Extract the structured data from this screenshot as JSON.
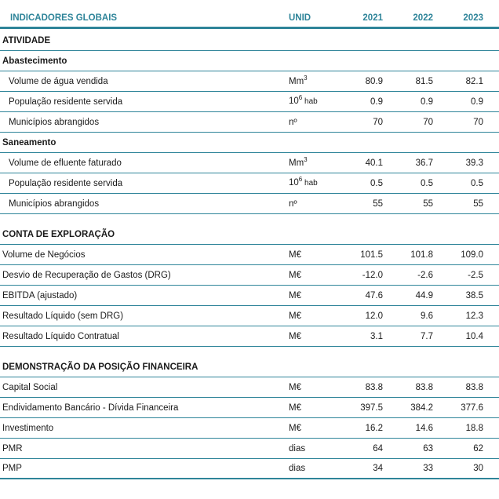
{
  "accent_color": "#2E8499",
  "table": {
    "header": {
      "title": "INDICADORES GLOBAIS",
      "unit_label": "UNID",
      "years": [
        "2021",
        "2022",
        "2023"
      ]
    },
    "sections": [
      {
        "id": "atividade",
        "title": "ATIVIDADE",
        "gap_before": false,
        "rows": [
          {
            "kind": "sub",
            "label": "Abastecimento"
          },
          {
            "kind": "data",
            "indent": true,
            "label": "Volume de água vendida",
            "unit": {
              "b": "Mm",
              "s": "3",
              "a": ""
            },
            "values": [
              "80.9",
              "81.5",
              "82.1"
            ]
          },
          {
            "kind": "data",
            "indent": true,
            "label": "População residente servida",
            "unit": {
              "b": "10",
              "s": "6",
              "a": " hab"
            },
            "values": [
              "0.9",
              "0.9",
              "0.9"
            ]
          },
          {
            "kind": "data",
            "indent": true,
            "label": "Municípios abrangidos",
            "unit": {
              "b": "nº",
              "s": "",
              "a": ""
            },
            "values": [
              "70",
              "70",
              "70"
            ]
          },
          {
            "kind": "sub",
            "label": "Saneamento"
          },
          {
            "kind": "data",
            "indent": true,
            "label": "Volume de efluente faturado",
            "unit": {
              "b": "Mm",
              "s": "3",
              "a": ""
            },
            "values": [
              "40.1",
              "36.7",
              "39.3"
            ]
          },
          {
            "kind": "data",
            "indent": true,
            "label": "População residente servida",
            "unit": {
              "b": "10",
              "s": "6",
              "a": " hab"
            },
            "values": [
              "0.5",
              "0.5",
              "0.5"
            ]
          },
          {
            "kind": "data",
            "indent": true,
            "label": "Municípios abrangidos",
            "unit": {
              "b": "nº",
              "s": "",
              "a": ""
            },
            "values": [
              "55",
              "55",
              "55"
            ]
          }
        ]
      },
      {
        "id": "conta-de-exploracao",
        "title": "CONTA DE EXPLORAÇÃO",
        "gap_before": true,
        "rows": [
          {
            "kind": "data",
            "indent": false,
            "label": "Volume de Negócios",
            "unit": {
              "b": "M€",
              "s": "",
              "a": ""
            },
            "values": [
              "101.5",
              "101.8",
              "109.0"
            ]
          },
          {
            "kind": "data",
            "indent": false,
            "label": "Desvio de Recuperação de Gastos (DRG)",
            "unit": {
              "b": "M€",
              "s": "",
              "a": ""
            },
            "values": [
              "-12.0",
              "-2.6",
              "-2.5"
            ]
          },
          {
            "kind": "data",
            "indent": false,
            "label": "EBITDA (ajustado)",
            "unit": {
              "b": "M€",
              "s": "",
              "a": ""
            },
            "values": [
              "47.6",
              "44.9",
              "38.5"
            ]
          },
          {
            "kind": "data",
            "indent": false,
            "label": "Resultado Líquido (sem DRG)",
            "unit": {
              "b": "M€",
              "s": "",
              "a": ""
            },
            "values": [
              "12.0",
              "9.6",
              "12.3"
            ]
          },
          {
            "kind": "data",
            "indent": false,
            "label": "Resultado Líquido Contratual",
            "unit": {
              "b": "M€",
              "s": "",
              "a": ""
            },
            "values": [
              "3.1",
              "7.7",
              "10.4"
            ]
          }
        ]
      },
      {
        "id": "posicao-financeira",
        "title": "DEMONSTRAÇÃO DA POSIÇÃO FINANCEIRA",
        "gap_before": true,
        "rows": [
          {
            "kind": "data",
            "indent": false,
            "label": "Capital Social",
            "unit": {
              "b": "M€",
              "s": "",
              "a": ""
            },
            "values": [
              "83.8",
              "83.8",
              "83.8"
            ]
          },
          {
            "kind": "data",
            "indent": false,
            "label": "Endividamento Bancário - Dívida Financeira",
            "unit": {
              "b": "M€",
              "s": "",
              "a": ""
            },
            "values": [
              "397.5",
              "384.2",
              "377.6"
            ]
          },
          {
            "kind": "data",
            "indent": false,
            "label": "Investimento",
            "unit": {
              "b": "M€",
              "s": "",
              "a": ""
            },
            "values": [
              "16.2",
              "14.6",
              "18.8"
            ]
          },
          {
            "kind": "data",
            "indent": false,
            "label": "PMR",
            "unit": {
              "b": "dias",
              "s": "",
              "a": ""
            },
            "values": [
              "64",
              "63",
              "62"
            ]
          },
          {
            "kind": "data",
            "indent": false,
            "label": "PMP",
            "unit": {
              "b": "dias",
              "s": "",
              "a": ""
            },
            "values": [
              "34",
              "33",
              "30"
            ]
          }
        ]
      }
    ]
  }
}
